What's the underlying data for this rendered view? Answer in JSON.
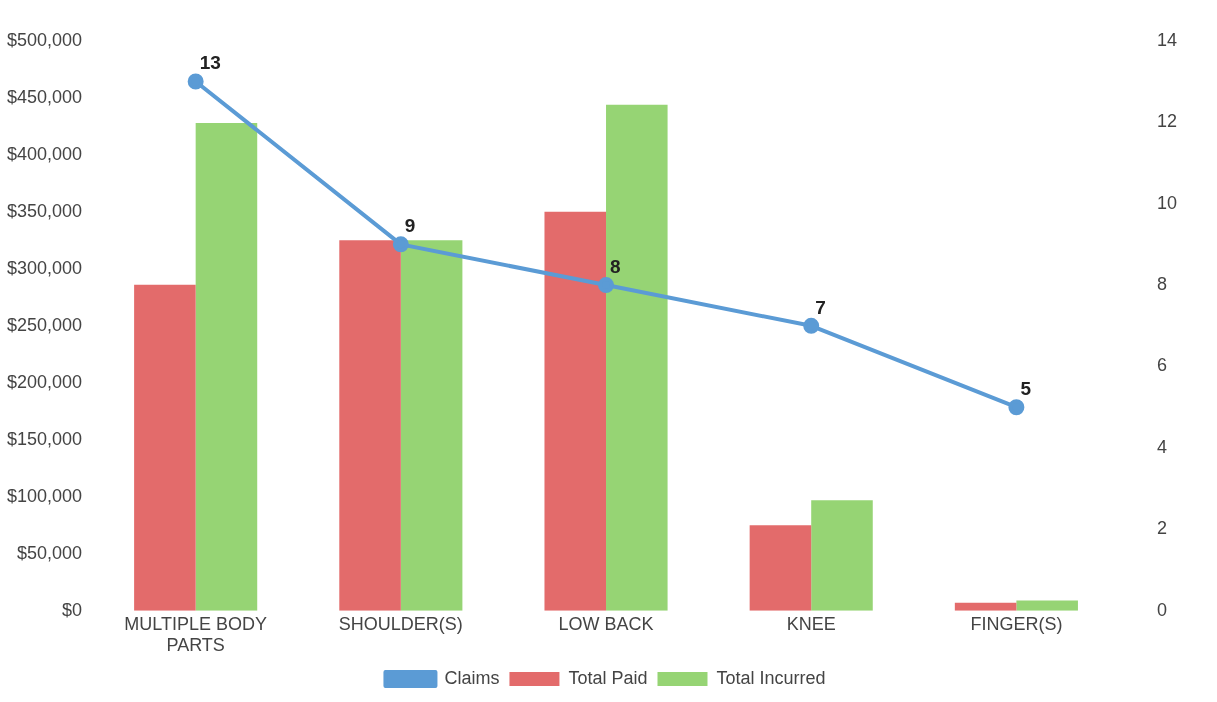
{
  "chart_data": {
    "type": "bar",
    "categories": [
      "MULTIPLE BODY PARTS",
      "SHOULDER(S)",
      "LOW BACK",
      "KNEE",
      "FINGER(S)"
    ],
    "series": [
      {
        "name": "Total Paid",
        "color": "#e36b6b",
        "values": [
          286000,
          325000,
          350000,
          75000,
          7000
        ]
      },
      {
        "name": "Total Incurred",
        "color": "#96d474",
        "values": [
          428000,
          325000,
          444000,
          97000,
          9000
        ]
      },
      {
        "name": "Claims",
        "type": "line",
        "axis": "y2",
        "color": "#5b9bd5",
        "values": [
          13,
          9,
          8,
          7,
          5
        ],
        "value_labels": [
          "13",
          "9",
          "8",
          "7",
          "5"
        ]
      }
    ],
    "ylim": [
      0,
      500000
    ],
    "yticks": [
      {
        "value": 0,
        "label": "$0"
      },
      {
        "value": 50000,
        "label": "$50,000"
      },
      {
        "value": 100000,
        "label": "$100,000"
      },
      {
        "value": 150000,
        "label": "$150,000"
      },
      {
        "value": 200000,
        "label": "$200,000"
      },
      {
        "value": 250000,
        "label": "$250,000"
      },
      {
        "value": 300000,
        "label": "$300,000"
      },
      {
        "value": 350000,
        "label": "$350,000"
      },
      {
        "value": 400000,
        "label": "$400,000"
      },
      {
        "value": 450000,
        "label": "$450,000"
      },
      {
        "value": 500000,
        "label": "$500,000"
      }
    ],
    "y2lim": [
      0,
      14
    ],
    "y2ticks": [
      0,
      2,
      4,
      6,
      8,
      10,
      12,
      14
    ],
    "legend": "bottom",
    "marker": "circle"
  }
}
